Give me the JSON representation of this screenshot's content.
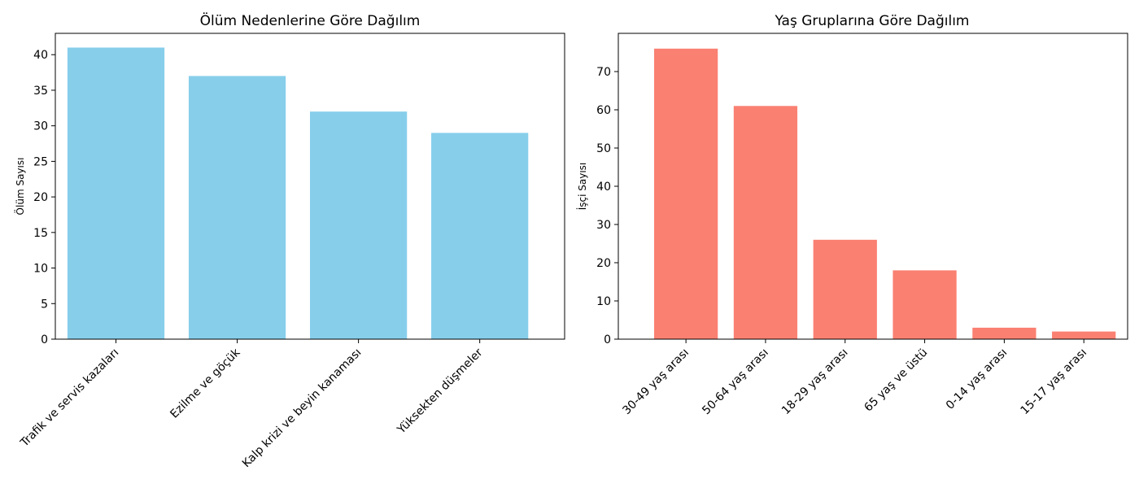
{
  "chart_data": [
    {
      "type": "bar",
      "title": "Ölüm Nedenlerine Göre Dağılım",
      "xlabel": "",
      "ylabel": "Ölüm Sayısı",
      "categories": [
        "Trafik ve servis kazaları",
        "Ezilme ve göçük",
        "Kalp krizi ve beyin kanaması",
        "Yüksekten düşmeler"
      ],
      "values": [
        41,
        37,
        32,
        29
      ],
      "ylim": [
        0,
        43
      ],
      "yticks": [
        0,
        5,
        10,
        15,
        20,
        25,
        30,
        35,
        40
      ],
      "color": "#87CEEB",
      "grid": false
    },
    {
      "type": "bar",
      "title": "Yaş Gruplarına Göre Dağılım",
      "xlabel": "",
      "ylabel": "İşçi Sayısı",
      "categories": [
        "30-49 yaş arası",
        "50-64 yaş arası",
        "18-29 yaş arası",
        "65 yaş ve üstü",
        "0-14 yaş arası",
        "15-17 yaş arası"
      ],
      "values": [
        76,
        61,
        26,
        18,
        3,
        2
      ],
      "ylim": [
        0,
        80
      ],
      "yticks": [
        0,
        10,
        20,
        30,
        40,
        50,
        60,
        70
      ],
      "color": "#FA8072",
      "grid": false
    }
  ]
}
